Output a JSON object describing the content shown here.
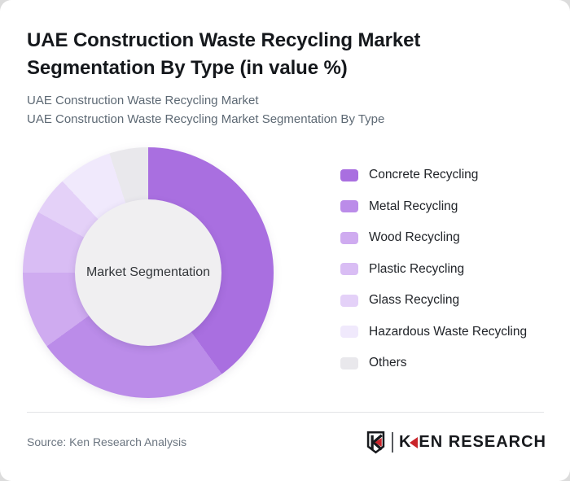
{
  "page": {
    "background_color": "#dcdcdc",
    "card_color": "#ffffff",
    "top_left_corner_color": "#3e3e3e"
  },
  "header": {
    "title": "UAE Construction Waste Recycling Market\nSegmentation By Type (in value %)",
    "subtitle1": "UAE Construction Waste Recycling Market",
    "subtitle2": "UAE Construction Waste Recycling Market Segmentation By Type"
  },
  "chart_data": {
    "type": "donut",
    "title": "UAE Construction Waste Recycling Market Segmentation By Type (in value %)",
    "unit": "value %",
    "center_label": "Market Segmentation",
    "start_angle_deg": 0,
    "direction": "clockwise",
    "legend_position": "right",
    "inner_circle_color": "#f0eff1",
    "segments": [
      {
        "label": "Concrete Recycling",
        "value": 40,
        "color": "#a96fe0"
      },
      {
        "label": "Metal Recycling",
        "value": 25,
        "color": "#bb8ce9"
      },
      {
        "label": "Wood Recycling",
        "value": 10,
        "color": "#cfabf0"
      },
      {
        "label": "Plastic Recycling",
        "value": 8,
        "color": "#d9bdf4"
      },
      {
        "label": "Glass Recycling",
        "value": 5,
        "color": "#e4d1f8"
      },
      {
        "label": "Hazardous Waste Recycling",
        "value": 7,
        "color": "#f0e9fc"
      },
      {
        "label": "Others",
        "value": 5,
        "color": "#e9e8ec"
      }
    ]
  },
  "footer": {
    "source": "Source: Ken Research Analysis",
    "logo": {
      "shield_letter": "K",
      "wordmark_k": "K",
      "wordmark_rest": "EN RESEARCH",
      "red": "#c9242a",
      "black": "#17191d"
    }
  }
}
